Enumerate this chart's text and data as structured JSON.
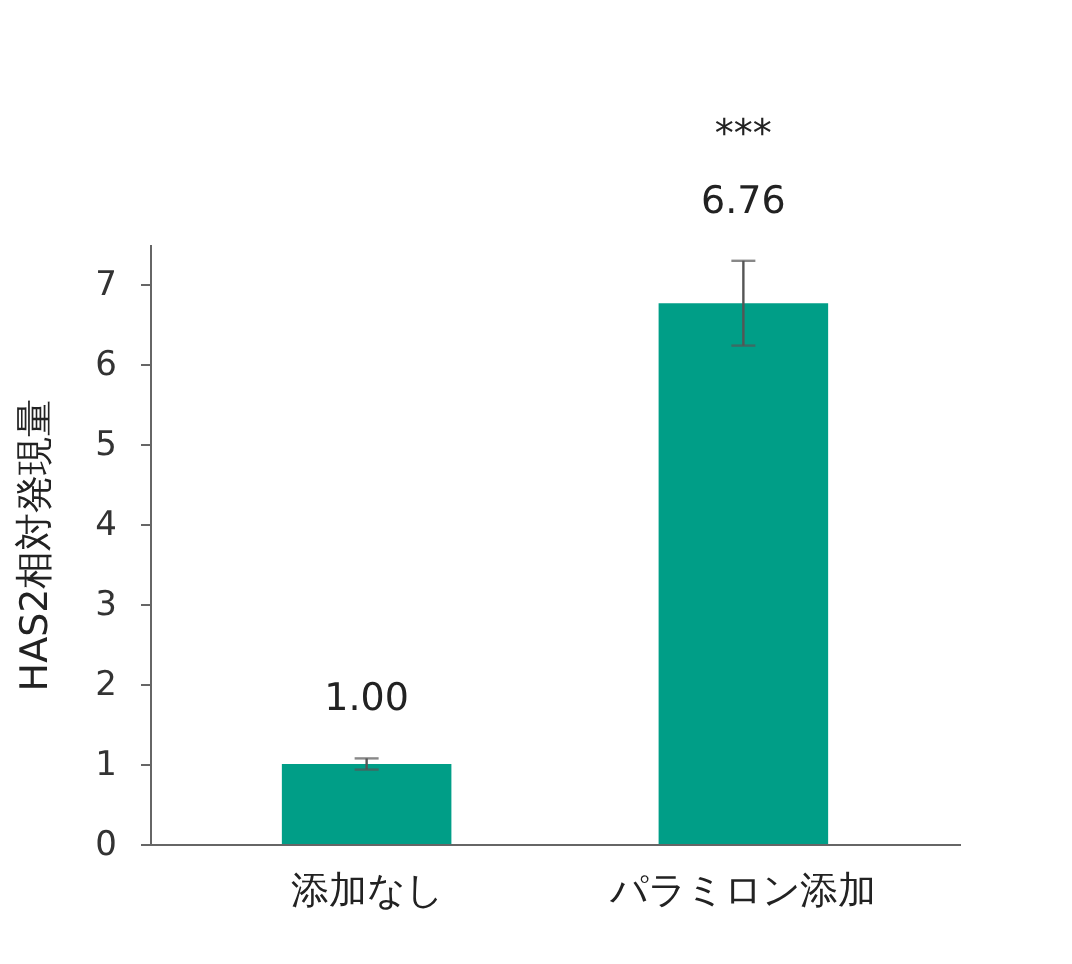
{
  "chart_data": {
    "type": "bar",
    "ylabel": "HAS2相対発現量",
    "categories": [
      "添加なし",
      "パラミロン添加"
    ],
    "values": [
      1.0,
      6.76
    ],
    "value_labels": [
      "1.00",
      "6.76"
    ],
    "errors": [
      0.07,
      0.53
    ],
    "color": "#009e87",
    "ylim": [
      0,
      7.5
    ],
    "yticks": [
      0,
      1,
      2,
      3,
      4,
      5,
      6,
      7
    ],
    "grid": false,
    "annotations": [
      "***"
    ]
  }
}
